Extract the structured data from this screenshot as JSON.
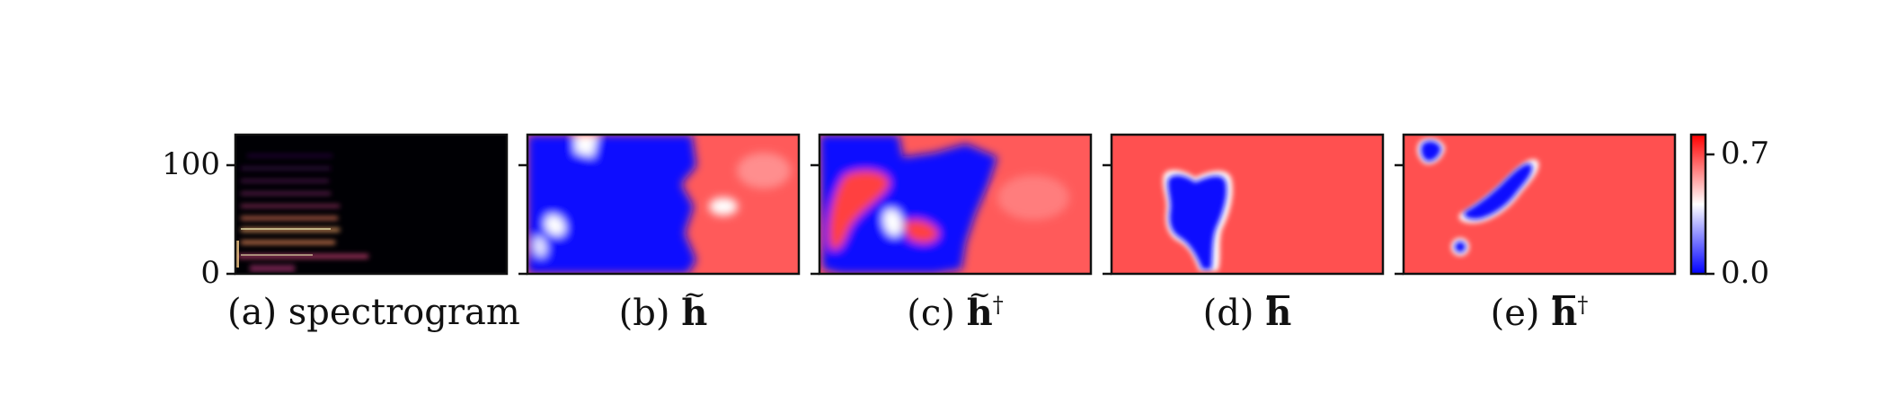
{
  "panels": [
    {
      "id": "a",
      "caption_prefix": "(a)",
      "caption_text": "spectrogram",
      "symbol": "",
      "accent": "",
      "dagger": ""
    },
    {
      "id": "b",
      "caption_prefix": "(b)",
      "caption_text": "",
      "symbol": "h",
      "accent": "tilde",
      "dagger": ""
    },
    {
      "id": "c",
      "caption_prefix": "(c)",
      "caption_text": "",
      "symbol": "h",
      "accent": "tilde",
      "dagger": "†"
    },
    {
      "id": "d",
      "caption_prefix": "(d)",
      "caption_text": "",
      "symbol": "h",
      "accent": "bar",
      "dagger": ""
    },
    {
      "id": "e",
      "caption_prefix": "(e)",
      "caption_text": "",
      "symbol": "h",
      "accent": "bar",
      "dagger": "†"
    }
  ],
  "y_axis": {
    "ticks": [
      "100",
      "0"
    ]
  },
  "colorbar": {
    "ticks": [
      "0.7",
      "0.0"
    ],
    "colors": {
      "low": "#0000ff",
      "mid": "#ffffff",
      "high": "#ff0000"
    }
  },
  "colors": {
    "heat_red": "#ff5050",
    "heat_blue": "#0a0aff",
    "spectrogram_bg": "#000004"
  }
}
